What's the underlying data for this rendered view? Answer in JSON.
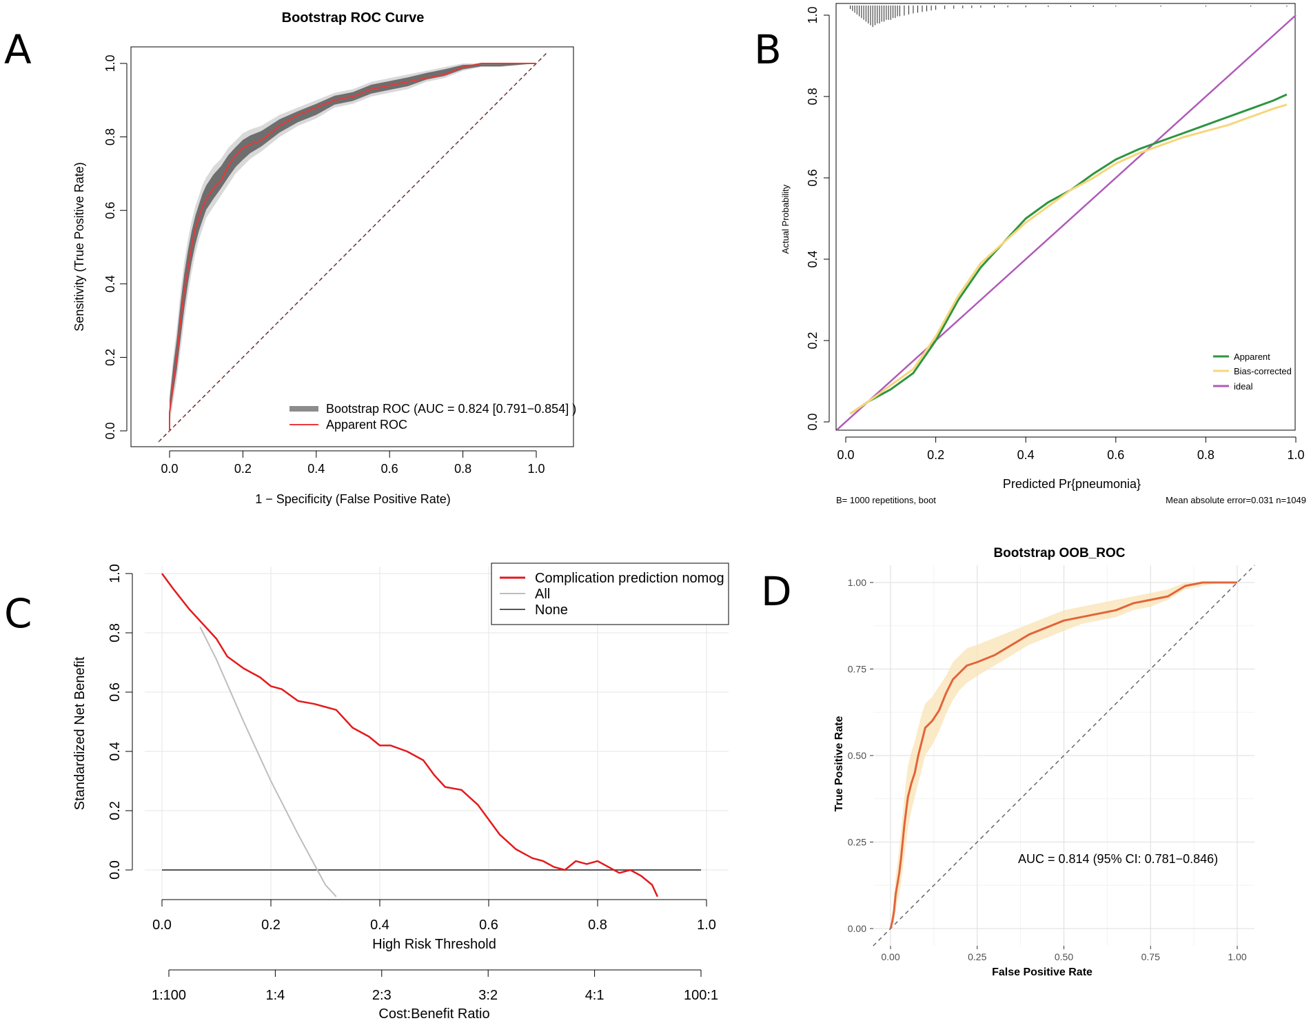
{
  "panel_labels": [
    "A",
    "B",
    "C",
    "D"
  ],
  "chart_data": [
    {
      "panel": "A",
      "type": "line",
      "title": "Bootstrap ROC Curve",
      "xlabel": "1 − Specificity (False Positive Rate)",
      "ylabel": "Sensitivity (True Positive Rate)",
      "xlim": [
        0,
        1
      ],
      "ylim": [
        0,
        1
      ],
      "xticks": [
        "0.0",
        "0.2",
        "0.4",
        "0.6",
        "0.8",
        "1.0"
      ],
      "yticks": [
        "0.0",
        "0.2",
        "0.4",
        "0.6",
        "0.8",
        "1.0"
      ],
      "legend": [
        "Bootstrap ROC (AUC = 0.824 [0.791−0.854] )",
        "Apparent ROC"
      ],
      "legend_position": "bottom-right",
      "series": [
        {
          "name": "Apparent ROC",
          "color": "#e8393a",
          "x": [
            0,
            0,
            0.01,
            0.02,
            0.03,
            0.04,
            0.05,
            0.06,
            0.07,
            0.08,
            0.09,
            0.1,
            0.12,
            0.14,
            0.16,
            0.18,
            0.2,
            0.22,
            0.25,
            0.3,
            0.35,
            0.4,
            0.45,
            0.5,
            0.55,
            0.6,
            0.65,
            0.7,
            0.75,
            0.8,
            0.85,
            0.9,
            0.95,
            1.0
          ],
          "y": [
            0,
            0.05,
            0.13,
            0.2,
            0.3,
            0.38,
            0.44,
            0.5,
            0.55,
            0.58,
            0.61,
            0.63,
            0.66,
            0.68,
            0.72,
            0.75,
            0.77,
            0.78,
            0.79,
            0.83,
            0.86,
            0.88,
            0.9,
            0.91,
            0.93,
            0.94,
            0.95,
            0.96,
            0.97,
            0.99,
            1.0,
            1.0,
            1.0,
            1.0
          ]
        },
        {
          "name": "Bootstrap ROC band",
          "color": "#6e6e6e",
          "x": [
            0,
            0,
            0.01,
            0.02,
            0.03,
            0.04,
            0.05,
            0.06,
            0.07,
            0.08,
            0.09,
            0.1,
            0.12,
            0.14,
            0.16,
            0.18,
            0.2,
            0.22,
            0.25,
            0.3,
            0.35,
            0.4,
            0.45,
            0.5,
            0.55,
            0.6,
            0.65,
            0.7,
            0.75,
            0.8,
            0.85,
            0.9,
            0.95,
            1.0
          ],
          "lower": [
            0,
            0.02,
            0.08,
            0.14,
            0.22,
            0.3,
            0.37,
            0.43,
            0.48,
            0.52,
            0.55,
            0.58,
            0.61,
            0.64,
            0.67,
            0.7,
            0.72,
            0.74,
            0.76,
            0.8,
            0.83,
            0.85,
            0.88,
            0.89,
            0.91,
            0.92,
            0.93,
            0.95,
            0.96,
            0.98,
            0.99,
            0.99,
            0.995,
            1.0
          ],
          "upper": [
            0,
            0.1,
            0.2,
            0.28,
            0.38,
            0.46,
            0.52,
            0.57,
            0.61,
            0.64,
            0.67,
            0.69,
            0.72,
            0.74,
            0.77,
            0.79,
            0.81,
            0.82,
            0.83,
            0.86,
            0.88,
            0.9,
            0.92,
            0.93,
            0.95,
            0.96,
            0.97,
            0.98,
            0.99,
            1.0,
            1.0,
            1.0,
            1.0,
            1.0
          ]
        },
        {
          "name": "reference",
          "color": "#333333",
          "x": [
            -0.03,
            1.03
          ],
          "y": [
            -0.03,
            1.03
          ]
        }
      ]
    },
    {
      "panel": "B",
      "type": "line",
      "title": "",
      "xlabel": "Predicted Pr{pneumonia}",
      "ylabel": "Actual Probability",
      "xlim": [
        0,
        1
      ],
      "ylim": [
        0,
        1
      ],
      "xticks": [
        "0.0",
        "0.2",
        "0.4",
        "0.6",
        "0.8",
        "1.0"
      ],
      "yticks": [
        "0.0",
        "0.2",
        "0.4",
        "0.6",
        "0.8",
        "1.0"
      ],
      "legend": [
        "Apparent",
        "Bias-corrected",
        "ideal"
      ],
      "legend_position": "bottom-right",
      "footnote_left": "B= 1000 repetitions, boot",
      "footnote_right": "Mean absolute error=0.031 n=1049",
      "series": [
        {
          "name": "Apparent",
          "color": "#2e9440",
          "x": [
            0.01,
            0.05,
            0.1,
            0.15,
            0.2,
            0.25,
            0.3,
            0.35,
            0.4,
            0.45,
            0.5,
            0.55,
            0.6,
            0.65,
            0.7,
            0.75,
            0.8,
            0.85,
            0.9,
            0.95,
            0.98
          ],
          "y": [
            0.02,
            0.05,
            0.08,
            0.12,
            0.2,
            0.3,
            0.38,
            0.44,
            0.5,
            0.54,
            0.57,
            0.61,
            0.645,
            0.67,
            0.69,
            0.71,
            0.73,
            0.75,
            0.77,
            0.79,
            0.805
          ]
        },
        {
          "name": "Bias-corrected",
          "color": "#f7d67a",
          "x": [
            0.01,
            0.05,
            0.1,
            0.15,
            0.2,
            0.25,
            0.3,
            0.35,
            0.4,
            0.45,
            0.5,
            0.55,
            0.6,
            0.65,
            0.7,
            0.75,
            0.8,
            0.85,
            0.9,
            0.95,
            0.98
          ],
          "y": [
            0.02,
            0.05,
            0.09,
            0.13,
            0.21,
            0.31,
            0.39,
            0.44,
            0.49,
            0.53,
            0.57,
            0.6,
            0.635,
            0.66,
            0.68,
            0.7,
            0.715,
            0.73,
            0.75,
            0.77,
            0.78
          ]
        },
        {
          "name": "ideal",
          "color": "#b05ab8",
          "x": [
            -0.02,
            1.0
          ],
          "y": [
            -0.02,
            1.0
          ]
        }
      ],
      "rug_x": [
        0.01,
        0.015,
        0.02,
        0.025,
        0.03,
        0.035,
        0.04,
        0.045,
        0.05,
        0.055,
        0.06,
        0.065,
        0.07,
        0.075,
        0.08,
        0.085,
        0.09,
        0.095,
        0.1,
        0.105,
        0.11,
        0.115,
        0.12,
        0.13,
        0.14,
        0.15,
        0.16,
        0.17,
        0.18,
        0.19,
        0.2,
        0.22,
        0.24,
        0.26,
        0.28,
        0.3,
        0.33,
        0.36,
        0.4,
        0.45,
        0.5,
        0.55,
        0.6,
        0.7,
        0.8,
        0.9,
        0.98
      ],
      "rug_h": [
        0.01,
        0.015,
        0.02,
        0.025,
        0.03,
        0.035,
        0.04,
        0.045,
        0.05,
        0.055,
        0.06,
        0.055,
        0.05,
        0.05,
        0.045,
        0.045,
        0.04,
        0.04,
        0.04,
        0.035,
        0.035,
        0.03,
        0.03,
        0.028,
        0.025,
        0.022,
        0.02,
        0.018,
        0.016,
        0.014,
        0.012,
        0.01,
        0.009,
        0.008,
        0.007,
        0.006,
        0.006,
        0.005,
        0.005,
        0.004,
        0.004,
        0.004,
        0.003,
        0.003,
        0.003,
        0.003,
        0.003
      ]
    },
    {
      "panel": "C",
      "type": "line",
      "title": "",
      "xlabel": "High Risk Threshold",
      "ylabel": "Standardized Net Benefit",
      "xlim": [
        0,
        1
      ],
      "ylim": [
        -0.09,
        1.0
      ],
      "xticks": [
        "0.0",
        "0.2",
        "0.4",
        "0.6",
        "0.8",
        "1.0"
      ],
      "yticks": [
        "0.0",
        "0.2",
        "0.4",
        "0.6",
        "0.8",
        "1.0"
      ],
      "cost_benefit_label": "Cost:Benefit Ratio",
      "cost_benefit_ticks": [
        "1:100",
        "1:4",
        "2:3",
        "3:2",
        "4:1",
        "100:1"
      ],
      "legend": [
        "Complication prediction nomog",
        "All",
        "None"
      ],
      "legend_position": "top-right",
      "series": [
        {
          "name": "Complication prediction nomogram",
          "color": "#e31a1c",
          "x": [
            0,
            0.02,
            0.05,
            0.08,
            0.1,
            0.12,
            0.15,
            0.18,
            0.2,
            0.22,
            0.25,
            0.28,
            0.3,
            0.32,
            0.35,
            0.38,
            0.4,
            0.42,
            0.45,
            0.48,
            0.5,
            0.52,
            0.55,
            0.58,
            0.6,
            0.62,
            0.65,
            0.68,
            0.7,
            0.72,
            0.74,
            0.76,
            0.78,
            0.8,
            0.82,
            0.84,
            0.86,
            0.88,
            0.9,
            0.91
          ],
          "y": [
            1.0,
            0.95,
            0.88,
            0.82,
            0.78,
            0.72,
            0.68,
            0.65,
            0.62,
            0.61,
            0.57,
            0.56,
            0.55,
            0.54,
            0.48,
            0.45,
            0.42,
            0.42,
            0.4,
            0.37,
            0.32,
            0.28,
            0.27,
            0.22,
            0.17,
            0.12,
            0.07,
            0.04,
            0.03,
            0.01,
            0.0,
            0.03,
            0.02,
            0.03,
            0.01,
            -0.01,
            0.0,
            -0.02,
            -0.05,
            -0.09
          ]
        },
        {
          "name": "All",
          "color": "#bdbdbd",
          "x": [
            0.07,
            0.1,
            0.15,
            0.2,
            0.25,
            0.3,
            0.32
          ],
          "y": [
            0.82,
            0.71,
            0.5,
            0.3,
            0.12,
            -0.05,
            -0.09
          ]
        },
        {
          "name": "None",
          "color": "#555555",
          "x": [
            0,
            0.99
          ],
          "y": [
            0,
            0
          ]
        }
      ]
    },
    {
      "panel": "D",
      "type": "line",
      "title": "Bootstrap OOB_ROC",
      "xlabel": "False Positive Rate",
      "ylabel": "True Positive Rate",
      "xlim": [
        0,
        1
      ],
      "ylim": [
        0,
        1
      ],
      "xticks": [
        "0.00",
        "0.25",
        "0.50",
        "0.75",
        "1.00"
      ],
      "yticks": [
        "0.00",
        "0.25",
        "0.50",
        "0.75",
        "1.00"
      ],
      "annotation": "AUC = 0.814 (95% CI: 0.781−0.846)",
      "series": [
        {
          "name": "OOB ROC",
          "color": "#e2643a",
          "x": [
            0,
            0.005,
            0.01,
            0.015,
            0.02,
            0.025,
            0.03,
            0.035,
            0.04,
            0.045,
            0.05,
            0.06,
            0.07,
            0.08,
            0.09,
            0.1,
            0.12,
            0.14,
            0.16,
            0.18,
            0.2,
            0.22,
            0.25,
            0.3,
            0.35,
            0.4,
            0.45,
            0.5,
            0.55,
            0.6,
            0.65,
            0.7,
            0.75,
            0.8,
            0.85,
            0.9,
            0.95,
            1.0
          ],
          "y": [
            0,
            0.02,
            0.05,
            0.1,
            0.13,
            0.16,
            0.2,
            0.25,
            0.3,
            0.34,
            0.38,
            0.42,
            0.45,
            0.5,
            0.54,
            0.58,
            0.6,
            0.63,
            0.68,
            0.72,
            0.74,
            0.76,
            0.77,
            0.79,
            0.82,
            0.85,
            0.87,
            0.89,
            0.9,
            0.91,
            0.92,
            0.94,
            0.95,
            0.96,
            0.99,
            1.0,
            1.0,
            1.0
          ]
        },
        {
          "name": "95% CI band",
          "color": "#f9e3b4",
          "x": [
            0,
            0.005,
            0.01,
            0.015,
            0.02,
            0.025,
            0.03,
            0.035,
            0.04,
            0.045,
            0.05,
            0.06,
            0.07,
            0.08,
            0.09,
            0.1,
            0.12,
            0.14,
            0.16,
            0.18,
            0.2,
            0.22,
            0.25,
            0.3,
            0.35,
            0.4,
            0.45,
            0.5,
            0.55,
            0.6,
            0.65,
            0.7,
            0.75,
            0.8,
            0.85,
            0.9,
            0.95,
            1.0
          ],
          "lower": [
            0,
            0.01,
            0.02,
            0.05,
            0.08,
            0.1,
            0.13,
            0.17,
            0.21,
            0.25,
            0.29,
            0.34,
            0.38,
            0.42,
            0.46,
            0.5,
            0.53,
            0.57,
            0.62,
            0.66,
            0.69,
            0.71,
            0.73,
            0.76,
            0.79,
            0.82,
            0.84,
            0.86,
            0.88,
            0.89,
            0.9,
            0.92,
            0.93,
            0.95,
            0.98,
            0.99,
            1.0,
            1.0
          ],
          "upper": [
            0,
            0.04,
            0.09,
            0.15,
            0.19,
            0.23,
            0.28,
            0.33,
            0.38,
            0.43,
            0.47,
            0.51,
            0.54,
            0.58,
            0.62,
            0.65,
            0.67,
            0.7,
            0.73,
            0.77,
            0.79,
            0.81,
            0.82,
            0.84,
            0.86,
            0.88,
            0.9,
            0.92,
            0.93,
            0.94,
            0.95,
            0.96,
            0.97,
            0.98,
            1.0,
            1.0,
            1.0,
            1.0
          ]
        },
        {
          "name": "reference",
          "color": "#666666",
          "x": [
            -0.05,
            1.05
          ],
          "y": [
            -0.05,
            1.05
          ]
        }
      ]
    }
  ]
}
